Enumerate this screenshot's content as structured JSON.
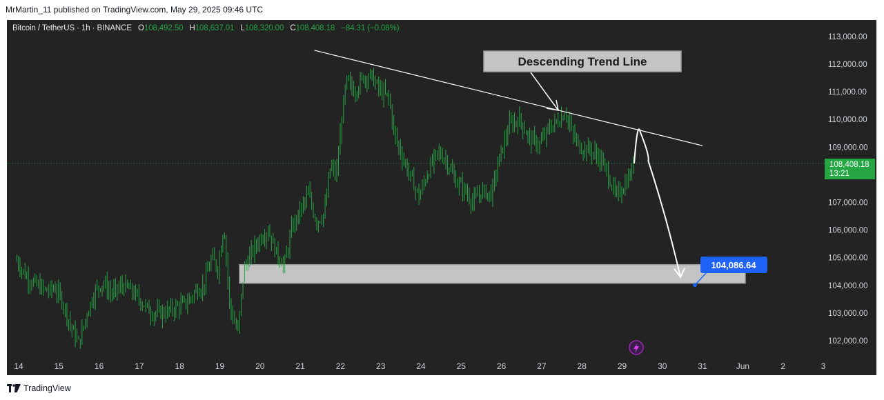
{
  "publisher_line": "MrMartin_11 published on TradingView.com, May 29, 2025 09:46 UTC",
  "symbol": {
    "name": "Bitcoin / TetherUS · 1h · BINANCE",
    "o_label": "O",
    "o_value": "108,492.50",
    "h_label": "H",
    "h_value": "108,637.01",
    "l_label": "L",
    "l_value": "108,320.00",
    "c_label": "C",
    "c_value": "108,408.18",
    "change": "−84.31 (−0.08%)"
  },
  "footer": {
    "brand": "TradingView",
    "logo_icon": "tradingview-logo-icon"
  },
  "colors": {
    "background": "#232323",
    "up": "#26a544",
    "annotation_fill": "#c4c4c4",
    "price_tag": "#1e63f5",
    "last_price_tag": "#26a544"
  },
  "annotations": {
    "trend_label": "Descending Trend Line",
    "target_price": "104,086.64",
    "last_price": "108,408.18",
    "countdown": "13:21"
  },
  "chart_data": {
    "type": "candlestick",
    "ylim": [
      101500,
      113500
    ],
    "y_ticks": [
      102000,
      103000,
      104000,
      105000,
      106000,
      107000,
      108000,
      109000,
      110000,
      111000,
      112000,
      113000
    ],
    "y_tick_labels": [
      "102,000.00",
      "103,000.00",
      "104,000.00",
      "105,000.00",
      "106,000.00",
      "107,000.00",
      "108,000.00",
      "109,000.00",
      "110,000.00",
      "111,000.00",
      "112,000.00",
      "113,000.00"
    ],
    "x_ticks": [
      {
        "label": "14",
        "day": 14
      },
      {
        "label": "15",
        "day": 15
      },
      {
        "label": "16",
        "day": 16
      },
      {
        "label": "17",
        "day": 17
      },
      {
        "label": "18",
        "day": 18
      },
      {
        "label": "19",
        "day": 19
      },
      {
        "label": "20",
        "day": 20
      },
      {
        "label": "21",
        "day": 21
      },
      {
        "label": "22",
        "day": 22
      },
      {
        "label": "23",
        "day": 23
      },
      {
        "label": "24",
        "day": 24
      },
      {
        "label": "25",
        "day": 25
      },
      {
        "label": "26",
        "day": 26
      },
      {
        "label": "27",
        "day": 27
      },
      {
        "label": "28",
        "day": 28
      },
      {
        "label": "29",
        "day": 29
      },
      {
        "label": "30",
        "day": 30
      },
      {
        "label": "31",
        "day": 31
      },
      {
        "label": "Jun",
        "day": 32
      },
      {
        "label": "2",
        "day": 33
      },
      {
        "label": "3",
        "day": 34
      }
    ],
    "price_path": [
      [
        13.95,
        104900
      ],
      [
        14.2,
        104300
      ],
      [
        14.45,
        104000
      ],
      [
        14.7,
        103800
      ],
      [
        14.9,
        103900
      ],
      [
        15.1,
        103400
      ],
      [
        15.3,
        102500
      ],
      [
        15.5,
        101900
      ],
      [
        15.7,
        103000
      ],
      [
        15.9,
        103800
      ],
      [
        16.1,
        104100
      ],
      [
        16.3,
        103700
      ],
      [
        16.6,
        104000
      ],
      [
        16.8,
        103800
      ],
      [
        17.0,
        103500
      ],
      [
        17.3,
        103000
      ],
      [
        17.6,
        103000
      ],
      [
        17.9,
        103200
      ],
      [
        18.2,
        103400
      ],
      [
        18.4,
        103800
      ],
      [
        18.6,
        104000
      ],
      [
        18.8,
        105000
      ],
      [
        18.95,
        104600
      ],
      [
        19.1,
        106200
      ],
      [
        19.25,
        103200
      ],
      [
        19.45,
        102300
      ],
      [
        19.6,
        104600
      ],
      [
        19.8,
        105200
      ],
      [
        20.0,
        105700
      ],
      [
        20.2,
        106000
      ],
      [
        20.4,
        105200
      ],
      [
        20.6,
        104700
      ],
      [
        20.8,
        106100
      ],
      [
        21.0,
        106700
      ],
      [
        21.2,
        107300
      ],
      [
        21.4,
        106300
      ],
      [
        21.6,
        106600
      ],
      [
        21.75,
        108300
      ],
      [
        21.9,
        108000
      ],
      [
        22.05,
        110300
      ],
      [
        22.15,
        111400
      ],
      [
        22.35,
        111000
      ],
      [
        22.55,
        111500
      ],
      [
        22.75,
        111600
      ],
      [
        23.0,
        111000
      ],
      [
        23.2,
        110800
      ],
      [
        23.35,
        109400
      ],
      [
        23.55,
        108600
      ],
      [
        23.75,
        107900
      ],
      [
        23.95,
        107200
      ],
      [
        24.15,
        108000
      ],
      [
        24.4,
        108800
      ],
      [
        24.6,
        108600
      ],
      [
        24.85,
        107800
      ],
      [
        25.05,
        107500
      ],
      [
        25.3,
        107000
      ],
      [
        25.5,
        107400
      ],
      [
        25.75,
        107300
      ],
      [
        25.95,
        108600
      ],
      [
        26.2,
        109800
      ],
      [
        26.45,
        110000
      ],
      [
        26.7,
        109300
      ],
      [
        26.95,
        109100
      ],
      [
        27.2,
        109700
      ],
      [
        27.45,
        110000
      ],
      [
        27.6,
        110300
      ],
      [
        27.75,
        109500
      ],
      [
        27.95,
        109000
      ],
      [
        28.2,
        108900
      ],
      [
        28.45,
        108600
      ],
      [
        28.65,
        108000
      ],
      [
        28.85,
        107200
      ],
      [
        29.05,
        107600
      ],
      [
        29.2,
        108000
      ],
      [
        29.3,
        108408
      ]
    ],
    "trend_line": [
      [
        21.35,
        112500
      ],
      [
        31.0,
        109050
      ]
    ],
    "support_zone": [
      104086.64,
      104750
    ],
    "projection": [
      [
        29.3,
        108408
      ],
      [
        29.45,
        109550
      ],
      [
        29.65,
        108500
      ],
      [
        30.1,
        106500
      ],
      [
        30.45,
        104300
      ]
    ],
    "last_price": 108408.18,
    "target": 104086.64
  }
}
